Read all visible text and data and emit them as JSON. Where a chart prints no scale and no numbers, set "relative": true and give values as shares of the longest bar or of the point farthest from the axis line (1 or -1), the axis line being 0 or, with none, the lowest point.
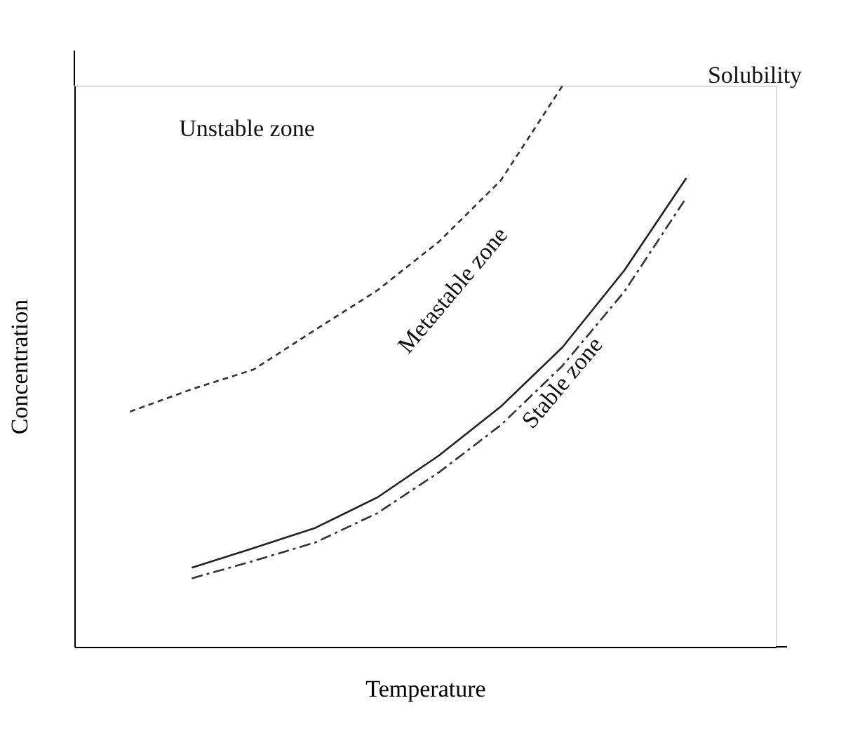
{
  "chart_data": {
    "type": "line",
    "relative": true,
    "xlabel": "Temperature",
    "ylabel": "Concentration",
    "grid": false,
    "marker": "none",
    "categories": [
      null,
      null,
      null,
      null,
      null,
      null,
      null,
      null,
      null,
      null
    ],
    "series": [
      {
        "color": "#333333",
        "line_style": "dashed",
        "values": [
          0.419,
          0.459,
          0.494,
          0.565,
          0.635,
          0.722,
          0.831,
          1.0,
          null,
          null
        ]
      },
      {
        "color": "#222222",
        "line_style": "solid",
        "values": [
          null,
          0.141,
          0.176,
          0.212,
          0.266,
          0.341,
          0.428,
          0.534,
          0.671,
          0.835
        ]
      },
      {
        "color": "#333333",
        "line_style": "dashdot",
        "values": [
          null,
          0.122,
          0.153,
          0.186,
          0.238,
          0.311,
          0.395,
          0.501,
          0.633,
          0.8
        ]
      }
    ],
    "annotations": [
      "Unstable zone",
      "Solubility",
      "Metastable zone",
      "Stable zone"
    ]
  }
}
